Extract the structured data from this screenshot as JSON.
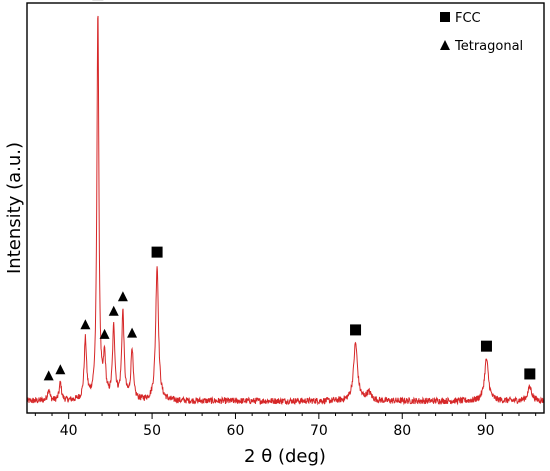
{
  "chart_data": {
    "type": "line",
    "title": "",
    "xlabel": "2 θ (deg)",
    "ylabel": "Intensity (a.u.)",
    "xlim": [
      35,
      97
    ],
    "ylim": [
      0,
      100
    ],
    "y_tick_labels_shown": false,
    "grid": false,
    "legend_placement": "top-right",
    "x_ticks": [
      40,
      50,
      60,
      70,
      80,
      90
    ],
    "line_color": "#d62728",
    "baseline": 1.5,
    "peaks": [
      {
        "x": 37.6,
        "h": 3,
        "w": 0.16
      },
      {
        "x": 39.0,
        "h": 4.5,
        "w": 0.16
      },
      {
        "x": 42.0,
        "h": 15,
        "w": 0.17
      },
      {
        "x": 43.5,
        "h": 98,
        "w": 0.14
      },
      {
        "x": 44.3,
        "h": 10,
        "w": 0.16
      },
      {
        "x": 45.4,
        "h": 18,
        "w": 0.17
      },
      {
        "x": 46.5,
        "h": 22,
        "w": 0.17
      },
      {
        "x": 47.6,
        "h": 13,
        "w": 0.16
      },
      {
        "x": 50.6,
        "h": 34,
        "w": 0.2
      },
      {
        "x": 74.4,
        "h": 14.5,
        "w": 0.28
      },
      {
        "x": 76.0,
        "h": 2,
        "w": 0.35
      },
      {
        "x": 90.1,
        "h": 10.5,
        "w": 0.28
      },
      {
        "x": 95.3,
        "h": 3.5,
        "w": 0.3
      }
    ],
    "series": [
      {
        "name": "FCC",
        "marker": "square",
        "marker_x": [
          43.5,
          50.6,
          74.4,
          90.1,
          95.3
        ]
      },
      {
        "name": "Tetragonal",
        "marker": "triangle",
        "marker_x": [
          37.6,
          39.0,
          42.0,
          44.3,
          45.4,
          46.5,
          47.6
        ]
      }
    ]
  }
}
